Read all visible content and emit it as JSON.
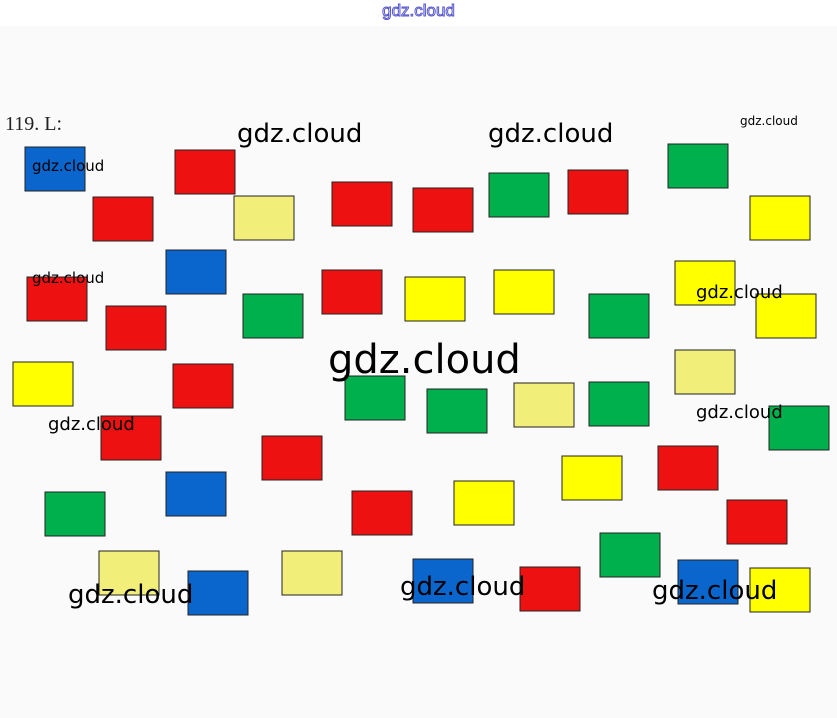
{
  "header": {
    "watermark": "gdz.cloud"
  },
  "exercise": {
    "number": "119. L:"
  },
  "watermarks": [
    "gdz.cloud",
    "gdz.cloud",
    "gdz.cloud",
    "gdz.cloud",
    "gdz.cloud",
    "gdz.cloud",
    "gdz.cloud",
    "gdz.cloud",
    "gdz.cloud",
    "gdz.cloud",
    "gdz.cloud",
    "gdz.cloud"
  ]
}
